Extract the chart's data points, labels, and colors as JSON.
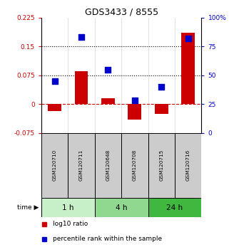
{
  "title": "GDS3433 / 8555",
  "samples": [
    "GSM120710",
    "GSM120711",
    "GSM120648",
    "GSM120708",
    "GSM120715",
    "GSM120716"
  ],
  "log10_ratio": [
    -0.018,
    0.085,
    0.015,
    -0.04,
    -0.025,
    0.185
  ],
  "percentile_rank": [
    45,
    83,
    55,
    28,
    40,
    82
  ],
  "time_groups": [
    {
      "label": "1 h",
      "start": 0,
      "end": 2,
      "color": "#c8f0c8"
    },
    {
      "label": "4 h",
      "start": 2,
      "end": 4,
      "color": "#90d890"
    },
    {
      "label": "24 h",
      "start": 4,
      "end": 6,
      "color": "#40b840"
    }
  ],
  "bar_color": "#cc0000",
  "dot_color": "#0000cc",
  "left_ylim": [
    -0.075,
    0.225
  ],
  "right_ylim": [
    0,
    100
  ],
  "left_yticks": [
    -0.075,
    0,
    0.075,
    0.15,
    0.225
  ],
  "right_yticks": [
    0,
    25,
    50,
    75,
    100
  ],
  "hline_values": [
    0.075,
    0.15
  ],
  "zero_line": 0.0,
  "sample_box_color": "#cccccc",
  "background_color": "#ffffff",
  "bar_width": 0.5,
  "dot_size": 28
}
